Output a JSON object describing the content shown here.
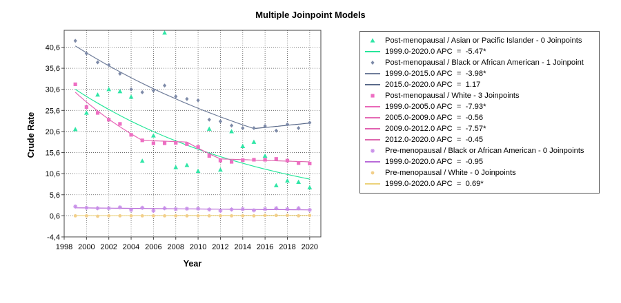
{
  "chart_data": {
    "type": "scatter",
    "title": "Multiple Joinpoint Models",
    "xlabel": "Year",
    "ylabel": "Crude Rate",
    "xlim": [
      1998,
      2021
    ],
    "ylim": [
      -4.4,
      44.6
    ],
    "x_ticks": [
      1998,
      2000,
      2002,
      2004,
      2006,
      2008,
      2010,
      2012,
      2014,
      2016,
      2018,
      2020
    ],
    "y_ticks": [
      -4.4,
      0.6,
      5.6,
      10.6,
      15.6,
      20.6,
      25.6,
      30.6,
      35.6,
      40.6
    ],
    "y_tick_labels": [
      "-4,4",
      "0,6",
      "5,6",
      "10,6",
      "15,6",
      "20,6",
      "25,6",
      "30,6",
      "35,6",
      "40,6"
    ],
    "grid": true,
    "legend_position": "right",
    "series": [
      {
        "name": "Post-menopausal / Asian or Pacific Islander - 0 Joinpoints",
        "marker": "triangle",
        "color": "#2ee6a6",
        "x": [
          1999,
          2000,
          2001,
          2002,
          2003,
          2004,
          2005,
          2006,
          2007,
          2008,
          2009,
          2010,
          2011,
          2012,
          2013,
          2014,
          2015,
          2016,
          2017,
          2018,
          2019,
          2020
        ],
        "values": [
          21.1,
          25.0,
          29.3,
          30.6,
          30.1,
          28.8,
          13.6,
          19.6,
          44.0,
          12.1,
          12.6,
          11.2,
          21.2,
          11.5,
          20.6,
          17.1,
          18.1,
          14.8,
          7.8,
          8.9,
          8.6,
          7.3
        ],
        "fits": [
          {
            "label": "1999.0-2020.0 APC  =  -5.47*",
            "color": "#26e69a",
            "segments": [
              {
                "x": [
                  1999,
                  2020
                ],
                "y": [
                  30.6,
                  9.3
                ],
                "shape": "exp"
              }
            ]
          }
        ]
      },
      {
        "name": "Post-menopausal / Black or African American - 1 Joinpoint",
        "marker": "diamond",
        "color": "#7d8aa8",
        "x": [
          1999,
          2000,
          2001,
          2002,
          2003,
          2004,
          2005,
          2006,
          2007,
          2008,
          2009,
          2010,
          2011,
          2012,
          2013,
          2014,
          2015,
          2016,
          2017,
          2018,
          2019,
          2020
        ],
        "values": [
          42.1,
          39.1,
          37.0,
          36.4,
          34.3,
          30.6,
          29.9,
          30.3,
          31.5,
          28.9,
          28.3,
          28.0,
          23.4,
          23.0,
          22.0,
          21.4,
          21.4,
          21.9,
          20.8,
          22.3,
          21.4,
          22.7
        ],
        "fits": [
          {
            "label": "1999.0-2015.0 APC  =  -3.98*",
            "color": "#6f7d9a",
            "segments": [
              {
                "x": [
                  1999,
                  2015
                ],
                "y": [
                  40.9,
                  21.3
                ],
                "shape": "exp"
              }
            ]
          },
          {
            "label": "2015.0-2020.0 APC  =  1.17",
            "color": "#5a6a8a",
            "segments": [
              {
                "x": [
                  2015,
                  2020
                ],
                "y": [
                  21.3,
                  22.6
                ],
                "shape": "exp"
              }
            ]
          }
        ]
      },
      {
        "name": "Post-menopausal / White - 3 Joinpoints",
        "marker": "square",
        "color": "#ee6fc3",
        "x": [
          1999,
          2000,
          2001,
          2002,
          2003,
          2004,
          2005,
          2006,
          2007,
          2008,
          2009,
          2010,
          2011,
          2012,
          2013,
          2014,
          2015,
          2016,
          2017,
          2018,
          2019,
          2020
        ],
        "values": [
          31.8,
          26.4,
          25.0,
          23.4,
          22.4,
          19.8,
          18.5,
          17.8,
          17.8,
          17.9,
          17.6,
          16.9,
          14.8,
          13.7,
          13.4,
          13.8,
          13.9,
          13.9,
          14.1,
          13.7,
          13.1,
          13.0
        ],
        "fits": [
          {
            "label": "1999.0-2005.0 APC  =  -7.93*",
            "color": "#e868b8",
            "segments": [
              {
                "x": [
                  1999,
                  2005
                ],
                "y": [
                  29.9,
                  18.5
                ],
                "shape": "exp"
              }
            ]
          },
          {
            "label": "2005.0-2009.0 APC  =  -0.56",
            "color": "#e46ab4",
            "segments": [
              {
                "x": [
                  2005,
                  2009
                ],
                "y": [
                  18.5,
                  18.1
                ],
                "shape": "exp"
              }
            ]
          },
          {
            "label": "2009.0-2012.0 APC  =  -7.57*",
            "color": "#e060b0",
            "segments": [
              {
                "x": [
                  2009,
                  2012
                ],
                "y": [
                  18.1,
                  14.1
                ],
                "shape": "exp"
              }
            ]
          },
          {
            "label": "2012.0-2020.0 APC  =  -0.45",
            "color": "#dd66ad",
            "segments": [
              {
                "x": [
                  2012,
                  2020
                ],
                "y": [
                  14.1,
                  13.4
                ],
                "shape": "exp"
              }
            ]
          }
        ]
      },
      {
        "name": "Pre-menopausal / Black or African American - 0 Joinpoints",
        "marker": "asterisk",
        "color": "#c78de8",
        "x": [
          1999,
          2000,
          2001,
          2002,
          2003,
          2004,
          2005,
          2006,
          2007,
          2008,
          2009,
          2010,
          2011,
          2012,
          2013,
          2014,
          2015,
          2016,
          2017,
          2018,
          2019,
          2020
        ],
        "values": [
          2.8,
          2.5,
          2.4,
          2.4,
          2.6,
          2.0,
          2.5,
          1.8,
          2.4,
          2.2,
          2.3,
          2.3,
          2.1,
          1.8,
          2.1,
          2.2,
          1.9,
          2.2,
          2.4,
          2.2,
          2.4,
          2.0
        ],
        "fits": [
          {
            "label": "1999.0-2020.0 APC  =  -0.95",
            "color": "#b86ad8",
            "segments": [
              {
                "x": [
                  1999,
                  2020
                ],
                "y": [
                  2.5,
                  2.0
                ],
                "shape": "exp"
              }
            ]
          }
        ]
      },
      {
        "name": "Pre-menopausal / White - 0 Joinpoints",
        "marker": "dot",
        "color": "#f2cf8a",
        "x": [
          1999,
          2000,
          2001,
          2002,
          2003,
          2004,
          2005,
          2006,
          2007,
          2008,
          2009,
          2010,
          2011,
          2012,
          2013,
          2014,
          2015,
          2016,
          2017,
          2018,
          2019,
          2020
        ],
        "values": [
          0.6,
          0.6,
          0.5,
          0.6,
          0.6,
          0.6,
          0.6,
          0.6,
          0.6,
          0.6,
          0.6,
          0.6,
          0.6,
          0.6,
          0.6,
          0.6,
          0.6,
          0.7,
          0.7,
          0.7,
          0.6,
          0.7
        ],
        "fits": [
          {
            "label": "1999.0-2020.0 APC  =  0.69*",
            "color": "#ecd27a",
            "segments": [
              {
                "x": [
                  1999,
                  2020
                ],
                "y": [
                  0.6,
                  0.7
                ],
                "shape": "exp"
              }
            ]
          }
        ]
      }
    ]
  }
}
